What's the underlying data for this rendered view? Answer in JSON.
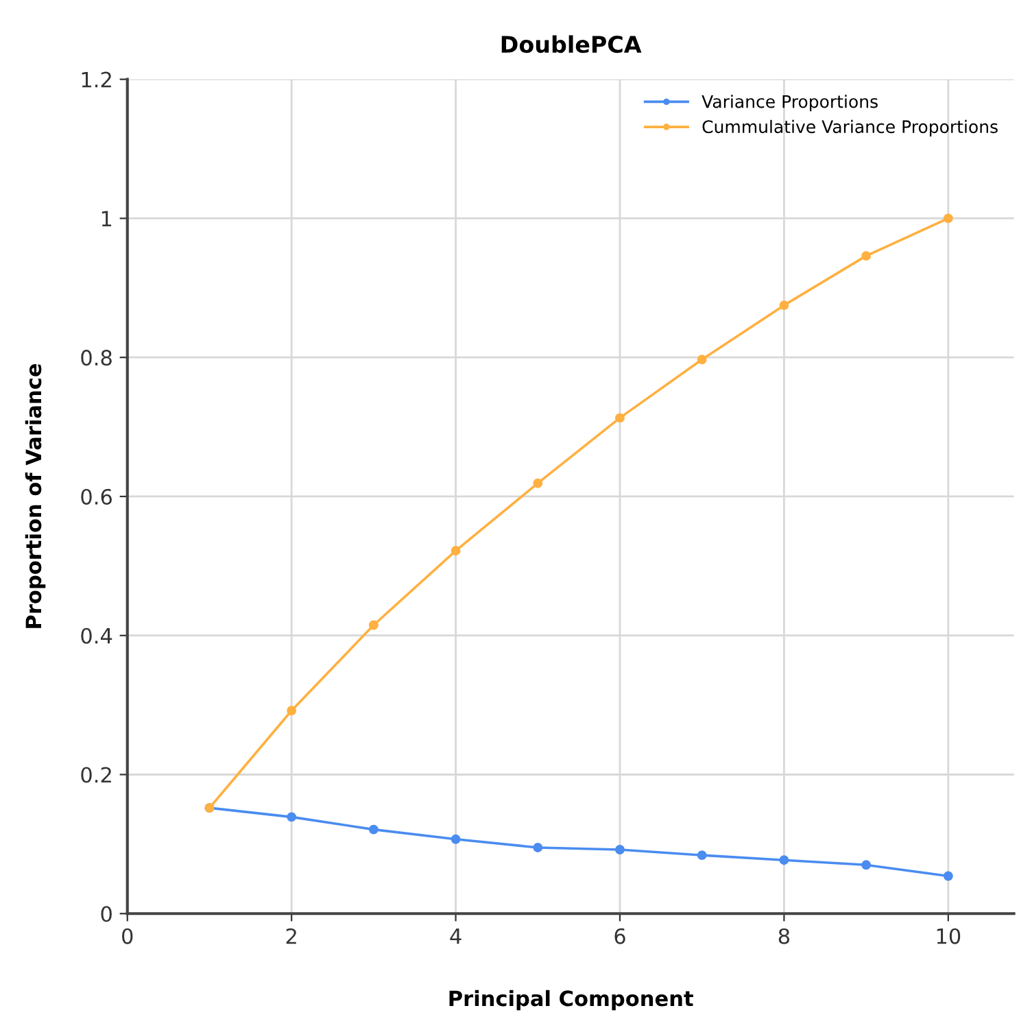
{
  "chart_data": {
    "type": "line",
    "title": "DoublePCA",
    "xlabel": "Principal Component",
    "ylabel": "Proportion of Variance",
    "x": [
      1,
      2,
      3,
      4,
      5,
      6,
      7,
      8,
      9,
      10
    ],
    "series": [
      {
        "name": "Variance Proportions",
        "color": "#4a8cf0",
        "values": [
          0.152,
          0.139,
          0.121,
          0.107,
          0.095,
          0.092,
          0.084,
          0.077,
          0.07,
          0.054
        ]
      },
      {
        "name": "Cummulative Variance Proportions",
        "color": "#ffb040",
        "values": [
          0.152,
          0.292,
          0.415,
          0.522,
          0.619,
          0.713,
          0.797,
          0.875,
          0.946,
          1.0
        ]
      }
    ],
    "xlim": [
      0,
      10.8
    ],
    "xticks": [
      0,
      2,
      4,
      6,
      8,
      10
    ],
    "ylim": [
      0,
      1.2
    ],
    "yticks": [
      0,
      0.2,
      0.4,
      0.6,
      0.8,
      1,
      1.2
    ],
    "grid": true,
    "legend": "top right",
    "marker": "circle",
    "line_style": "solid"
  }
}
